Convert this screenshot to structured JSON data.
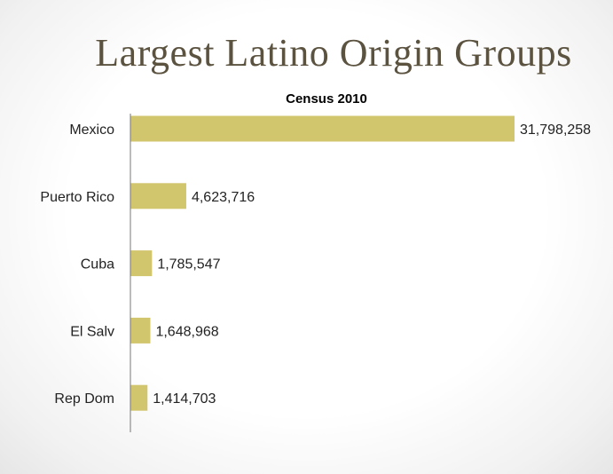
{
  "slide": {
    "title": "Largest Latino Origin Groups"
  },
  "chart_data": {
    "type": "bar",
    "orientation": "horizontal",
    "title": "Census 2010",
    "categories": [
      "Mexico",
      "Puerto Rico",
      "Cuba",
      "El Salv",
      "Rep Dom"
    ],
    "values": [
      31798258,
      4623716,
      1785547,
      1648968,
      1414703
    ],
    "value_labels": [
      "31,798,258",
      "4,623,716",
      "1,785,547",
      "1,648,968",
      "1,414,703"
    ],
    "xlim": [
      0,
      31798258
    ],
    "grid": false,
    "legend": "none",
    "bar_color": "#d1c56e"
  }
}
